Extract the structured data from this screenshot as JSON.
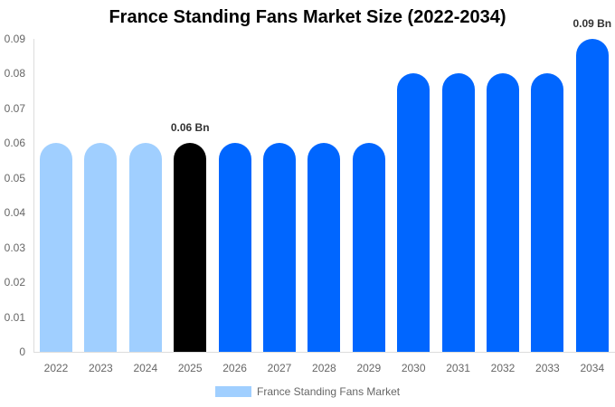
{
  "chart_data": {
    "type": "bar",
    "title": "France Standing Fans Market Size (2022-2034)",
    "xlabel": "",
    "ylabel": "",
    "ylim": [
      0,
      0.09
    ],
    "yticks": [
      "0",
      "0.01",
      "0.02",
      "0.03",
      "0.04",
      "0.05",
      "0.06",
      "0.07",
      "0.08",
      "0.09"
    ],
    "categories": [
      "2022",
      "2023",
      "2024",
      "2025",
      "2026",
      "2027",
      "2028",
      "2029",
      "2030",
      "2031",
      "2032",
      "2033",
      "2034"
    ],
    "series": [
      {
        "name": "France Standing Fans Market",
        "values": [
          0.06,
          0.06,
          0.06,
          0.06,
          0.06,
          0.06,
          0.06,
          0.06,
          0.08,
          0.08,
          0.08,
          0.08,
          0.09
        ]
      }
    ],
    "bar_colors": [
      "#a0cfff",
      "#a0cfff",
      "#a0cfff",
      "#000000",
      "#0066ff",
      "#0066ff",
      "#0066ff",
      "#0066ff",
      "#0066ff",
      "#0066ff",
      "#0066ff",
      "#0066ff",
      "#0066ff"
    ],
    "annotations": [
      {
        "category": "2025",
        "text": "0.06 Bn"
      },
      {
        "category": "2034",
        "text": "0.09 Bn"
      }
    ],
    "legend": {
      "label": "France Standing Fans Market",
      "color": "#a0cfff",
      "position": "bottom"
    },
    "grid": false
  }
}
